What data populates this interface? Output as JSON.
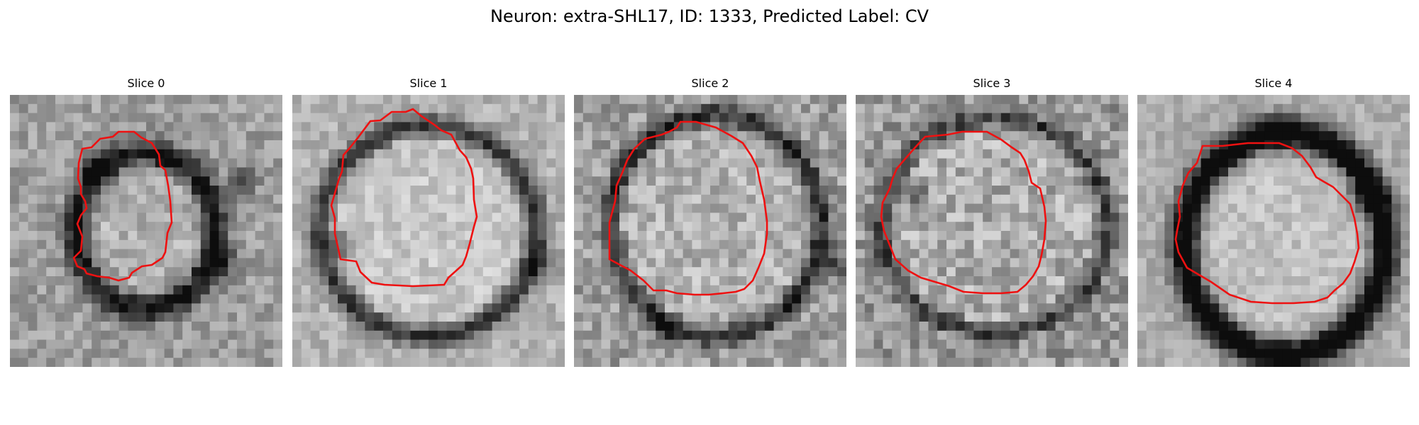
{
  "title": "Neuron: extra-SHL17, ID: 1333, Predicted Label: CV",
  "contour_color": "#ee1111",
  "panels": [
    {
      "title": "Slice 0"
    },
    {
      "title": "Slice 1"
    },
    {
      "title": "Slice 2"
    },
    {
      "title": "Slice 3"
    },
    {
      "title": "Slice 4"
    }
  ]
}
